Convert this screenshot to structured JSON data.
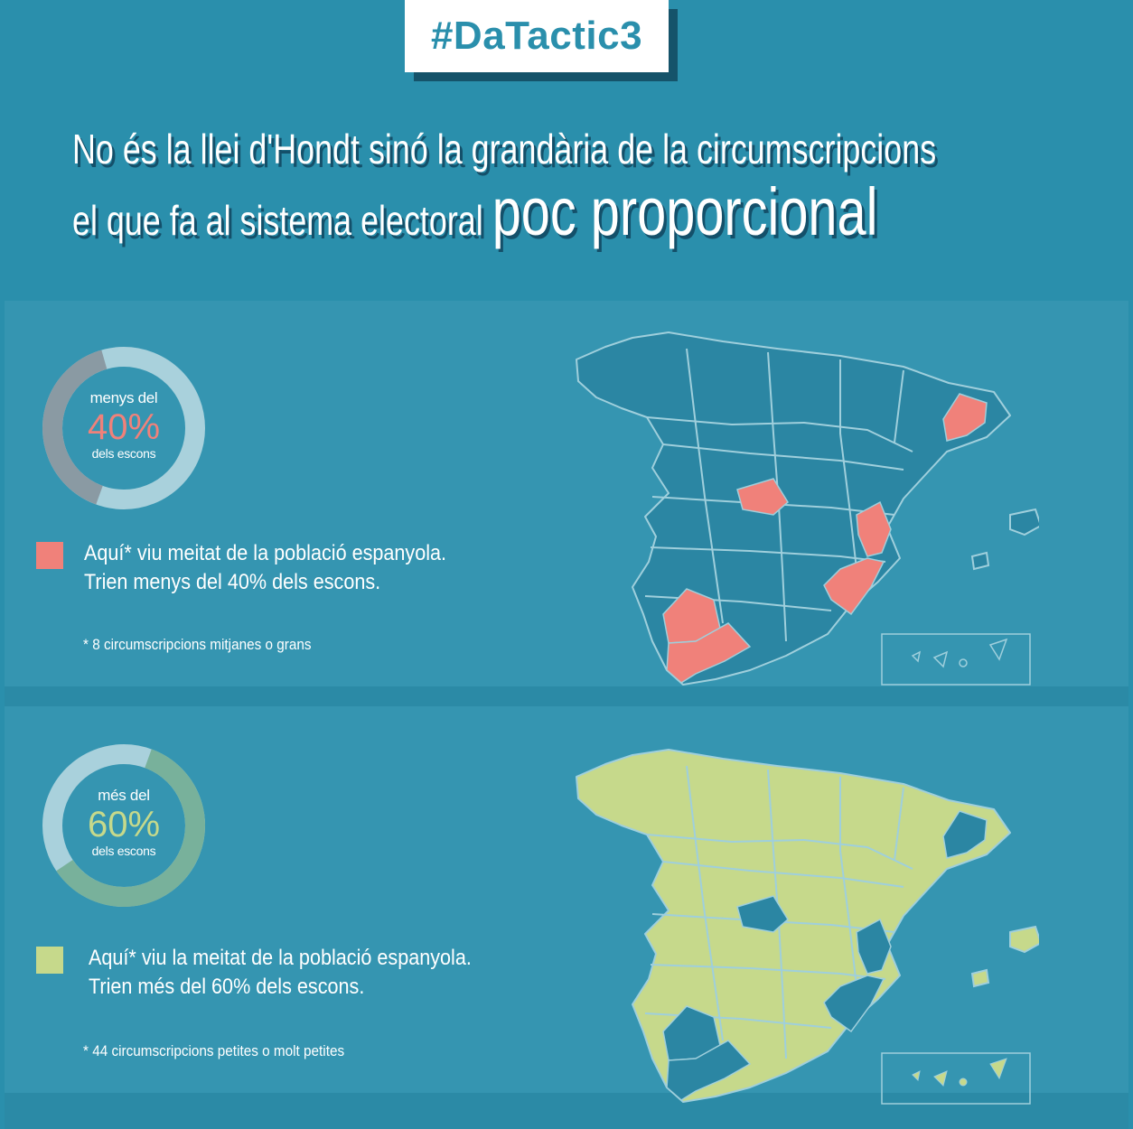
{
  "tag": "#DaTactic3",
  "headline": {
    "line1": "No és la llei d'Hondt sinó la grandària de la circumscripcions",
    "line2_lead": "el que fa al sistema electoral",
    "line2_emph": "poc proporcional"
  },
  "colors": {
    "background": "#2a8fac",
    "panel": "#3595b1",
    "big_regions": "#f0817a",
    "small_regions": "#c6d98b",
    "map_dark": "#2b86a3",
    "donut_light": "#a9d1dc",
    "donut_gray": "#8a9aa3",
    "donut_green": "#78b19b"
  },
  "section_big": {
    "donut": {
      "top_text": "menys del",
      "value_text": "40%",
      "bottom_text": "dels escons",
      "share": 0.4
    },
    "legend_line1": "Aquí* viu meitat de la població espanyola.",
    "legend_line2": "Trien menys del 40% dels escons.",
    "footnote": "* 8 circumscripcions mitjanes o grans"
  },
  "section_small": {
    "donut": {
      "top_text": "més del",
      "value_text": "60%",
      "bottom_text": "dels escons",
      "share": 0.6
    },
    "legend_line1": "Aquí* viu la meitat de la població espanyola.",
    "legend_line2": "Trien més del 60% dels escons.",
    "footnote": "* 44 circumscripcions petites o molt petites"
  }
}
